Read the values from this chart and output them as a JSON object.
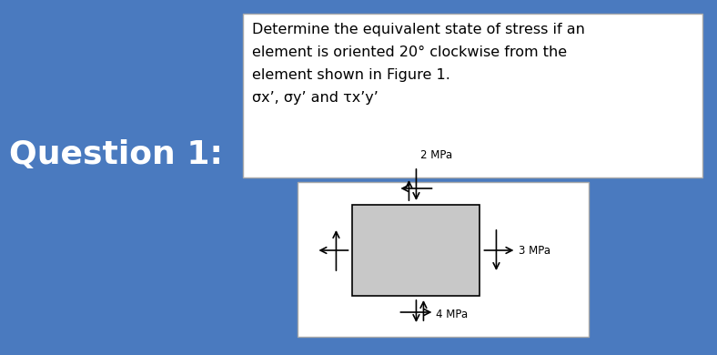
{
  "background_color": "#4a7abf",
  "text_box_color": "#ffffff",
  "question_text": "Question 1:",
  "question_fontsize": 26,
  "question_color": "#ffffff",
  "title_lines": [
    "Determine the equivalent state of stress if an",
    "element is oriented 20° clockwise from the",
    "element shown in Figure 1.",
    "σx’, σy’ and τx’y’"
  ],
  "title_fontsize": 11.5,
  "diagram_box_color": "#ffffff",
  "element_color": "#c8c8c8",
  "element_edge_color": "#000000",
  "label_3mpa": "3 MPa",
  "label_2mpa": "2 MPa",
  "label_4mpa": "4 MPa",
  "label_fontsize": 8.5
}
